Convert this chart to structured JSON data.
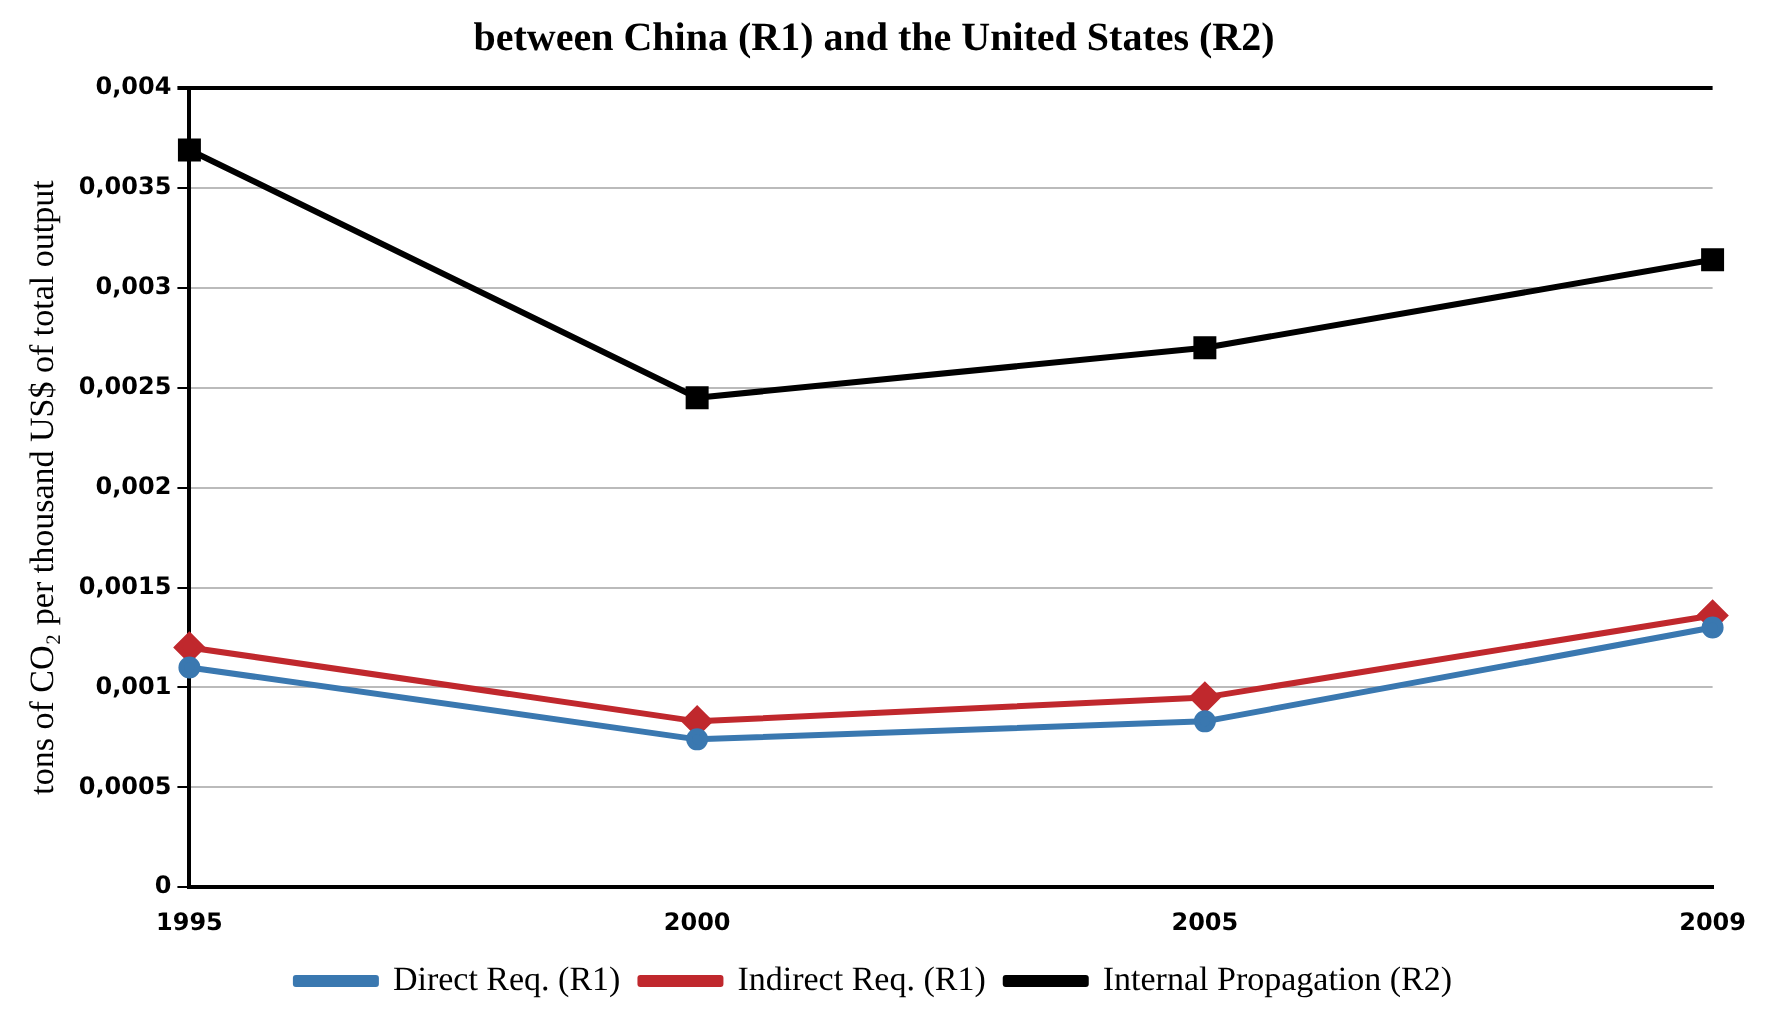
{
  "chart_data": {
    "type": "line",
    "title": "between China (R1) and the United States (R2)",
    "ylabel": "tons of CO₂ per thousand US$ of total output",
    "categories": [
      "1995",
      "2000",
      "2005",
      "2009"
    ],
    "series": [
      {
        "name": "Direct Req. (R1)",
        "color": "#3a78b0",
        "marker": "circle",
        "values": [
          0.0011,
          0.00074,
          0.00083,
          0.0013
        ]
      },
      {
        "name": "Indirect Req. (R1)",
        "color": "#c0282d",
        "marker": "diamond",
        "values": [
          0.0012,
          0.00083,
          0.00095,
          0.00136
        ]
      },
      {
        "name": "Internal Propagation (R2)",
        "color": "#000000",
        "marker": "square",
        "values": [
          0.00369,
          0.00245,
          0.0027,
          0.00314
        ]
      }
    ],
    "ylim": [
      0,
      0.004
    ],
    "yticks": [
      {
        "value": 0,
        "label": "0"
      },
      {
        "value": 0.0005,
        "label": "0,0005"
      },
      {
        "value": 0.001,
        "label": "0,001"
      },
      {
        "value": 0.0015,
        "label": "0,0015"
      },
      {
        "value": 0.002,
        "label": "0,002"
      },
      {
        "value": 0.0025,
        "label": "0,0025"
      },
      {
        "value": 0.003,
        "label": "0,003"
      },
      {
        "value": 0.0035,
        "label": "0,0035"
      },
      {
        "value": 0.004,
        "label": "0,004"
      }
    ],
    "grid": "y",
    "legend": "bottom",
    "line_style": "solid"
  }
}
